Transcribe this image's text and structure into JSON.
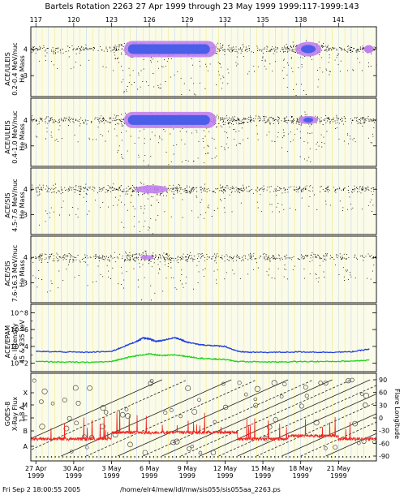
{
  "header": {
    "title": "Bartels Rotation 2263    27 Apr 1999 through 23 May 1999    1999:117-1999:143"
  },
  "footer": {
    "timestamp": "Fri Sep  2 18:00:55 2005",
    "path": "/home/elr4/mew/idl/mw/sis055/sis055aa_2263.ps"
  },
  "colors": {
    "panel_bg": "#fbfbe9",
    "grid_yellow": "#f1e98c",
    "day_grid": "#c6d8ea",
    "blue_line": "#1f3fe0",
    "green_line": "#18d318",
    "red_line": "#ee2222",
    "core_blue": "#4a5ee8",
    "core_violet": "#c080f0"
  },
  "chart_data": {
    "type": "scatter",
    "doy_ticks": [
      "117",
      "120",
      "123",
      "126",
      "129",
      "132",
      "135",
      "138",
      "141"
    ],
    "date_ticks": [
      {
        "day": "27 Apr",
        "year": "1999"
      },
      {
        "day": "30 Apr",
        "year": "1999"
      },
      {
        "day": "3 May",
        "year": "1999"
      },
      {
        "day": "6 May",
        "year": "1999"
      },
      {
        "day": "9 May",
        "year": "1999"
      },
      {
        "day": "12 May",
        "year": "1999"
      },
      {
        "day": "15 May",
        "year": "1999"
      },
      {
        "day": "18 May",
        "year": "1999"
      },
      {
        "day": "21 May",
        "year": "1999"
      }
    ],
    "panels": [
      {
        "id": "p1",
        "ylabel": [
          "ACE/ULEIS",
          "0.2-0.4 MeV/nuc",
          "He Mass"
        ],
        "yticks": [
          "4",
          "3"
        ],
        "activity": [
          [
            117,
            0.2
          ],
          [
            123,
            0.2
          ],
          [
            124,
            0.9
          ],
          [
            126,
            1.0
          ],
          [
            128,
            0.95
          ],
          [
            131,
            0.7
          ],
          [
            133,
            0.3
          ],
          [
            136,
            0.2
          ],
          [
            137,
            0.6
          ],
          [
            138.5,
            0.9
          ],
          [
            139.5,
            0.5
          ],
          [
            141,
            0.3
          ],
          [
            144,
            0.2
          ]
        ]
      },
      {
        "id": "p2",
        "ylabel": [
          "ACE/ULEIS",
          "0.4-1.0 MeV/nuc",
          "He Mass"
        ],
        "yticks": [
          "4",
          "3"
        ],
        "activity": [
          [
            117,
            0.2
          ],
          [
            123,
            0.2
          ],
          [
            124,
            0.9
          ],
          [
            126,
            1.0
          ],
          [
            128,
            0.95
          ],
          [
            131,
            0.6
          ],
          [
            133,
            0.3
          ],
          [
            136,
            0.25
          ],
          [
            137,
            0.5
          ],
          [
            138.5,
            0.8
          ],
          [
            139.5,
            0.4
          ],
          [
            141,
            0.3
          ],
          [
            144,
            0.2
          ]
        ]
      },
      {
        "id": "p3",
        "ylabel": [
          "ACE/SIS",
          "4.5-7.6 MeV/nuc",
          "He Mass"
        ],
        "yticks": [
          "4",
          "3"
        ],
        "activity": [
          [
            117,
            0.6
          ],
          [
            119,
            0.4
          ],
          [
            123,
            0.25
          ],
          [
            124,
            0.6
          ],
          [
            125.5,
            0.9
          ],
          [
            127,
            0.6
          ],
          [
            129,
            0.45
          ],
          [
            131,
            0.35
          ],
          [
            133,
            0.25
          ],
          [
            137,
            0.25
          ],
          [
            139,
            0.3
          ],
          [
            144,
            0.2
          ]
        ]
      },
      {
        "id": "p4",
        "ylabel": [
          "ACE/SIS",
          "7.6-16.3 MeV/nuc",
          "He Mass"
        ],
        "yticks": [
          "4",
          "3"
        ],
        "activity": [
          [
            117,
            0.6
          ],
          [
            119,
            0.4
          ],
          [
            121,
            0.35
          ],
          [
            123,
            0.3
          ],
          [
            124,
            0.6
          ],
          [
            125.5,
            0.85
          ],
          [
            127,
            0.55
          ],
          [
            129,
            0.45
          ],
          [
            131,
            0.35
          ],
          [
            133,
            0.25
          ],
          [
            137,
            0.25
          ],
          [
            139,
            0.3
          ],
          [
            144,
            0.2
          ]
        ]
      }
    ],
    "epam": {
      "ylabel": [
        "ACE/EPAM",
        "e- Intensity",
        "45 & 235 keV"
      ],
      "yticks": [
        "10^8",
        "10^6",
        "10^4",
        "10^2"
      ],
      "log_ylim": [
        1,
        9
      ],
      "series": [
        {
          "color": "blue",
          "points": [
            [
              117,
              3.4
            ],
            [
              119,
              3.35
            ],
            [
              121,
              3.3
            ],
            [
              123,
              3.4
            ],
            [
              124,
              4.0
            ],
            [
              125,
              4.6
            ],
            [
              125.5,
              5.0
            ],
            [
              126,
              4.9
            ],
            [
              126.5,
              4.6
            ],
            [
              127,
              4.7
            ],
            [
              128,
              5.05
            ],
            [
              128.5,
              4.8
            ],
            [
              129,
              4.5
            ],
            [
              130,
              4.2
            ],
            [
              131,
              4.1
            ],
            [
              132,
              4.0
            ],
            [
              133,
              3.4
            ],
            [
              134,
              3.3
            ],
            [
              136,
              3.3
            ],
            [
              138,
              3.35
            ],
            [
              140,
              3.3
            ],
            [
              142,
              3.35
            ],
            [
              143.5,
              3.7
            ]
          ]
        },
        {
          "color": "green",
          "points": [
            [
              117,
              2.2
            ],
            [
              119,
              2.15
            ],
            [
              121,
              2.1
            ],
            [
              123,
              2.2
            ],
            [
              124,
              2.6
            ],
            [
              125,
              2.9
            ],
            [
              126,
              3.1
            ],
            [
              127,
              2.9
            ],
            [
              128,
              3.0
            ],
            [
              129,
              2.8
            ],
            [
              130,
              2.6
            ],
            [
              131,
              2.5
            ],
            [
              132,
              2.45
            ],
            [
              133,
              2.2
            ],
            [
              136,
              2.15
            ],
            [
              138,
              2.2
            ],
            [
              140,
              2.2
            ],
            [
              142,
              2.25
            ],
            [
              143.5,
              2.4
            ]
          ]
        }
      ]
    },
    "goes": {
      "ylabel": [
        "GOES-8",
        "X-Ray Flux",
        "1-8 A"
      ],
      "classes": [
        "X",
        "M",
        "C",
        "B",
        "A"
      ],
      "right_label": "Flare Longitude",
      "right_ticks": [
        "90",
        "60",
        "30",
        "0",
        "-30",
        "-60",
        "-90"
      ],
      "right_ylim": [
        -90,
        90
      ]
    }
  }
}
